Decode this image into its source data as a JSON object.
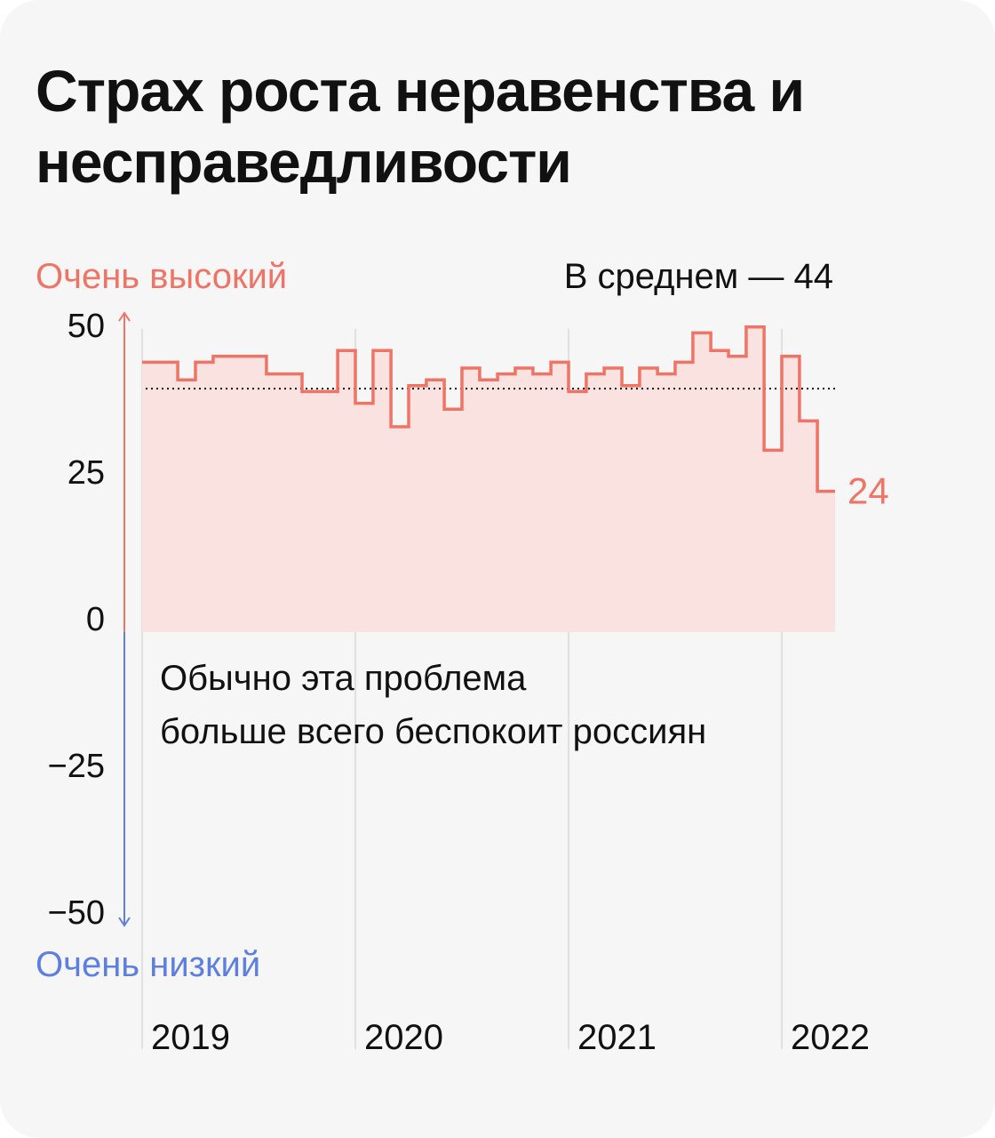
{
  "title": "Страх роста неравенства и несправедливости",
  "colors": {
    "background": "#f6f6f6",
    "line": "#ef7466",
    "fill": "#f9e2e0",
    "high": "#ef7466",
    "low": "#5d7fe0",
    "grid": "#d9d9d9",
    "text": "#111111"
  },
  "chart_data": {
    "type": "area",
    "step": true,
    "ylim": [
      -50,
      50
    ],
    "y_ticks": [
      "50",
      "25",
      "0",
      "−25",
      "−50"
    ],
    "y_tick_values": [
      50,
      25,
      0,
      -25,
      -50
    ],
    "x_ticks": [
      "2019",
      "2020",
      "2021",
      "2022"
    ],
    "x_tick_values": [
      2019,
      2020,
      2021,
      2022
    ],
    "axis_top_label": "Очень высокий",
    "axis_bottom_label": "Очень низкий",
    "average": {
      "label": "В среднем — 44",
      "value": 44
    },
    "annotation": [
      "Обычно эта проблема",
      "больше всего беспокоит россиян"
    ],
    "last_value_label": "24",
    "series": [
      {
        "x": [
          2019.0,
          2019.167,
          2019.25,
          2019.333,
          2019.583,
          2019.75,
          2019.917,
          2020.0,
          2020.083,
          2020.167,
          2020.25,
          2020.333,
          2020.417,
          2020.5,
          2020.583,
          2020.667,
          2020.75,
          2020.833,
          2020.917,
          2021.0,
          2021.083,
          2021.167,
          2021.25,
          2021.333,
          2021.417,
          2021.5,
          2021.583,
          2021.667,
          2021.75,
          2021.833,
          2021.917,
          2022.0,
          2022.083,
          2022.167,
          2022.25
        ],
        "values": [
          46,
          43,
          46,
          47,
          44,
          41,
          48,
          39,
          48,
          35,
          42,
          43,
          38,
          45,
          43,
          44,
          45,
          44,
          46,
          41,
          44,
          45,
          42,
          45,
          44,
          46,
          51,
          48,
          47,
          52,
          31,
          47,
          36,
          24,
          24
        ]
      }
    ]
  }
}
